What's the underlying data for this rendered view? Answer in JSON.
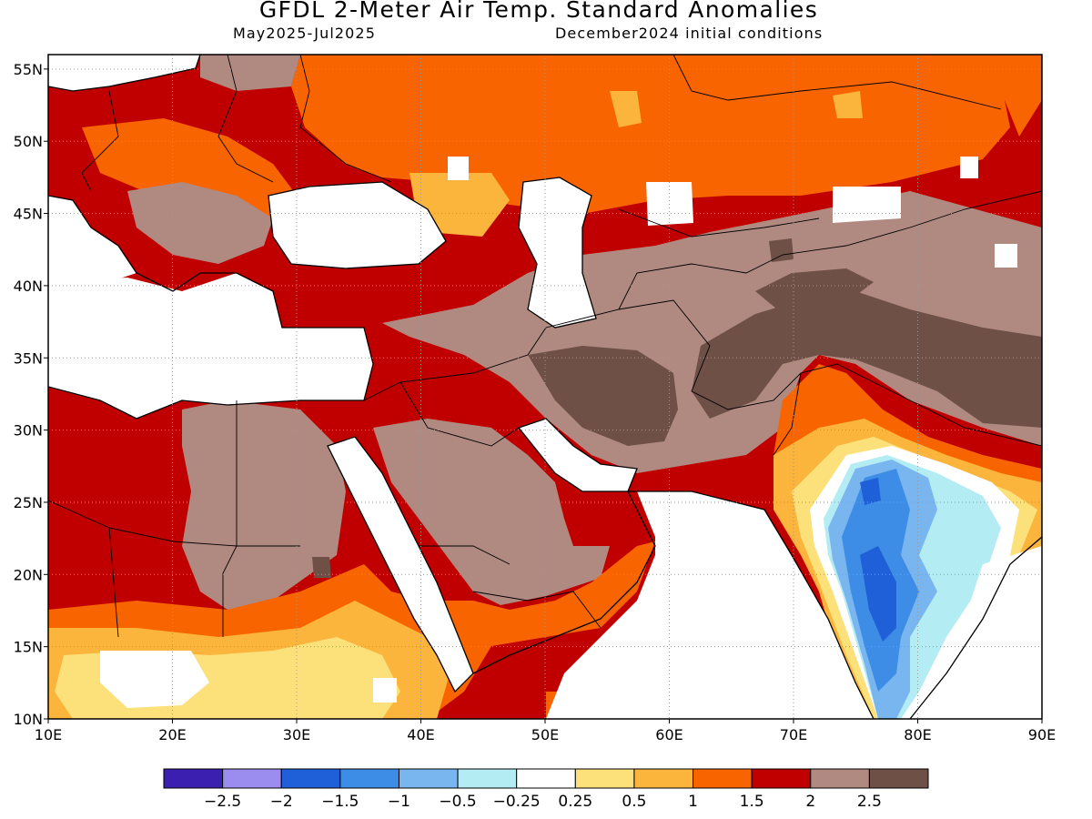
{
  "header": {
    "title": "GFDL 2-Meter Air Temp. Standard Anomalies",
    "period": "May2025-Jul2025",
    "init": "December2024 initial conditions"
  },
  "map": {
    "lon_range": [
      10,
      90
    ],
    "lat_range": [
      10,
      56
    ],
    "lat_labels": [
      {
        "lat": 55,
        "text": "55N"
      },
      {
        "lat": 50,
        "text": "50N"
      },
      {
        "lat": 45,
        "text": "45N"
      },
      {
        "lat": 40,
        "text": "40N"
      },
      {
        "lat": 35,
        "text": "35N"
      },
      {
        "lat": 30,
        "text": "30N"
      },
      {
        "lat": 25,
        "text": "25N"
      },
      {
        "lat": 20,
        "text": "20N"
      },
      {
        "lat": 15,
        "text": "15N"
      },
      {
        "lat": 10,
        "text": "10N"
      }
    ],
    "lon_labels": [
      {
        "lon": 10,
        "text": "10E"
      },
      {
        "lon": 20,
        "text": "20E"
      },
      {
        "lon": 30,
        "text": "30E"
      },
      {
        "lon": 40,
        "text": "40E"
      },
      {
        "lon": 50,
        "text": "50E"
      },
      {
        "lon": 60,
        "text": "60E"
      },
      {
        "lon": 70,
        "text": "70E"
      },
      {
        "lon": 80,
        "text": "80E"
      },
      {
        "lon": 90,
        "text": "90E"
      }
    ],
    "gridlines": "dotted"
  },
  "colorbar": {
    "colors": [
      "#3a1fb0",
      "#9b8cf0",
      "#1f5fd8",
      "#3d8ce6",
      "#79b6f0",
      "#b4ecf4",
      "#ffffff",
      "#fce07a",
      "#fbb43c",
      "#f86400",
      "#c00000",
      "#b08a80",
      "#6e5046"
    ],
    "labels": [
      "-2.5",
      "-2",
      "-1.5",
      "-1",
      "-0.5",
      "-0.25",
      "0.25",
      "0.5",
      "1",
      "1.5",
      "2",
      "2.5"
    ]
  },
  "anomaly_regions": [
    {
      "name": "Europe & western Russia",
      "class": "2 to 2.5"
    },
    {
      "name": "Russia / Kazakhstan band",
      "class": "1.5 to 2"
    },
    {
      "name": "Iran / Central Asia",
      "class": "above 2.5"
    },
    {
      "name": "Arabian Peninsula interior",
      "class": "2 to 2.5"
    },
    {
      "name": "Sahara",
      "class": "2 to 2.5"
    },
    {
      "name": "Sahel / Horn of Africa",
      "class": "0.5 to 1.5"
    },
    {
      "name": "Mediterranean Sea",
      "class": "-0.25 to 0.25"
    },
    {
      "name": "Central India",
      "class": "-1.5 to -0.25"
    }
  ]
}
